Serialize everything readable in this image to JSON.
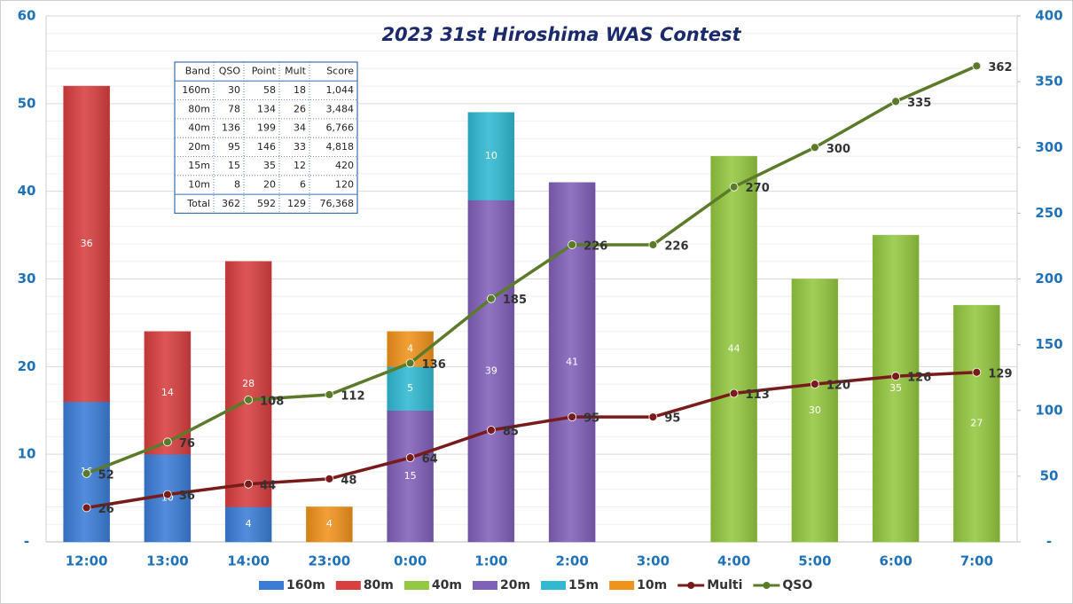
{
  "chart_data": {
    "type": "bar-line",
    "title": "2023 31st Hiroshima WAS Contest",
    "categories": [
      "12:00",
      "13:00",
      "14:00",
      "23:00",
      "0:00",
      "1:00",
      "2:00",
      "3:00",
      "4:00",
      "5:00",
      "6:00",
      "7:00"
    ],
    "series": [
      {
        "name": "160m",
        "color": "#3b7dd6",
        "values": [
          16,
          10,
          4,
          null,
          null,
          null,
          null,
          null,
          null,
          null,
          null,
          null
        ]
      },
      {
        "name": "80m",
        "color": "#d83f3f",
        "values": [
          36,
          14,
          28,
          null,
          null,
          null,
          null,
          null,
          null,
          null,
          null,
          null
        ]
      },
      {
        "name": "40m",
        "color": "#93c840",
        "values": [
          null,
          null,
          null,
          null,
          null,
          null,
          null,
          null,
          44,
          30,
          35,
          27
        ]
      },
      {
        "name": "20m",
        "color": "#8160b9",
        "values": [
          null,
          null,
          null,
          null,
          15,
          39,
          41,
          null,
          null,
          null,
          null,
          null
        ]
      },
      {
        "name": "15m",
        "color": "#31b9d2",
        "values": [
          null,
          null,
          null,
          null,
          5,
          10,
          null,
          null,
          null,
          null,
          null,
          null
        ]
      },
      {
        "name": "10m",
        "color": "#f0921c",
        "values": [
          null,
          null,
          null,
          4,
          4,
          null,
          null,
          null,
          null,
          null,
          null,
          null
        ]
      },
      {
        "name": "Multi",
        "type": "line",
        "axis": "y2",
        "color": "#7a1b1b",
        "values": [
          26,
          36,
          44,
          48,
          64,
          85,
          95,
          95,
          113,
          120,
          126,
          129
        ]
      },
      {
        "name": "QSO",
        "type": "line",
        "axis": "y2",
        "color": "#5b7b2a",
        "values": [
          52,
          76,
          108,
          112,
          136,
          185,
          226,
          226,
          270,
          300,
          335,
          362
        ]
      }
    ],
    "ylim": [
      0,
      60
    ],
    "yticks": [
      {
        "value": 0,
        "label": "-"
      },
      10,
      20,
      30,
      40,
      50,
      60
    ],
    "y2lim": [
      0,
      400
    ],
    "y2ticks": [
      {
        "value": 0,
        "label": "-"
      },
      50,
      100,
      150,
      200,
      250,
      300,
      350,
      400
    ],
    "grid": true,
    "legend": "bottom"
  },
  "table": {
    "header": [
      "Band",
      "QSO",
      "Point",
      "Mult",
      "Score"
    ],
    "rows": [
      [
        "160m",
        30,
        58,
        18,
        "1,044"
      ],
      [
        "80m",
        78,
        134,
        26,
        "3,484"
      ],
      [
        "40m",
        136,
        199,
        34,
        "6,766"
      ],
      [
        "20m",
        95,
        146,
        33,
        "4,818"
      ],
      [
        "15m",
        15,
        35,
        12,
        "420"
      ],
      [
        "10m",
        8,
        20,
        6,
        "120"
      ],
      [
        "Total",
        362,
        592,
        129,
        "76,368"
      ]
    ]
  }
}
